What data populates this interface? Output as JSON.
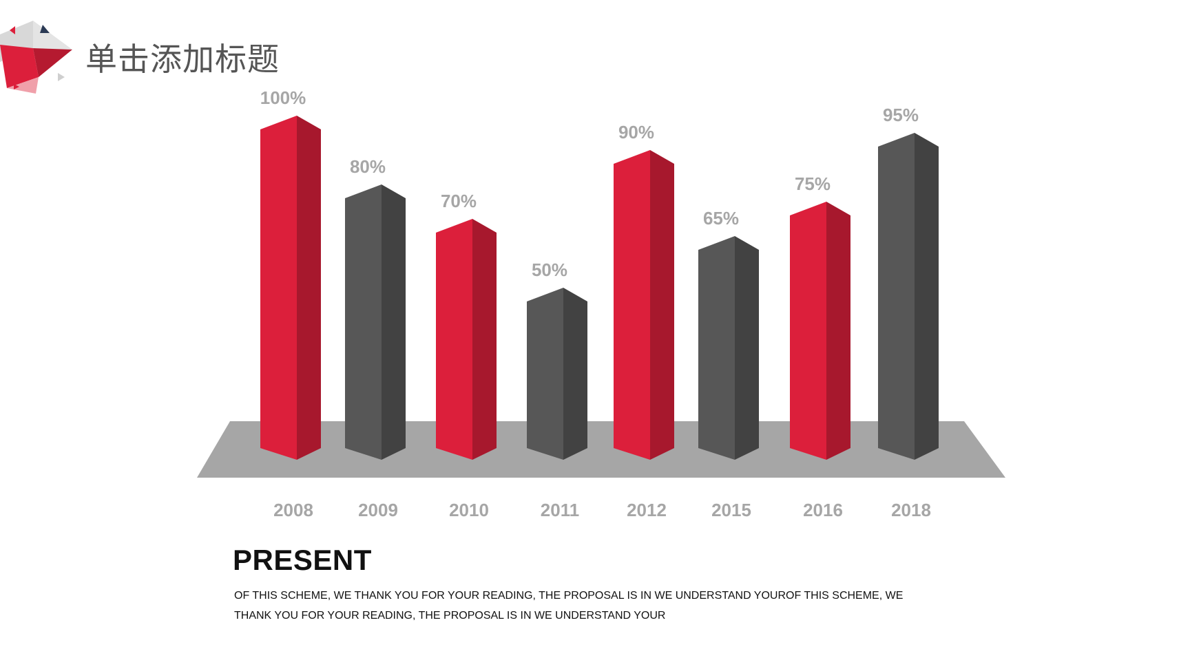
{
  "page": {
    "title": "单击添加标题"
  },
  "chart_data": {
    "type": "bar",
    "style": "3d-columns-on-platform",
    "categories": [
      "2008",
      "2009",
      "2010",
      "2011",
      "2012",
      "2015",
      "2016",
      "2018"
    ],
    "values": [
      100,
      80,
      70,
      50,
      90,
      65,
      75,
      95
    ],
    "value_labels": [
      "100%",
      "80%",
      "70%",
      "50%",
      "90%",
      "65%",
      "75%",
      "95%"
    ],
    "bar_colors": [
      "red",
      "gray",
      "red",
      "gray",
      "red",
      "gray",
      "red",
      "gray"
    ],
    "ylim": [
      0,
      100
    ],
    "grid": false,
    "legend": "none",
    "title": "",
    "xlabel": "",
    "ylabel": ""
  },
  "colors": {
    "red_front": "#dc1f3b",
    "red_side": "#a7182d",
    "gray_front": "#575757",
    "gray_side": "#424242",
    "platform": "#a6a6a6",
    "label": "#a6a6a6"
  },
  "text_block": {
    "heading": "PRESENT",
    "body": "OF THIS SCHEME, WE THANK YOU FOR YOUR READING, THE PROPOSAL IS IN WE UNDERSTAND YOUROF THIS SCHEME, WE THANK YOU FOR YOUR READING, THE PROPOSAL IS IN WE UNDERSTAND YOUR"
  }
}
